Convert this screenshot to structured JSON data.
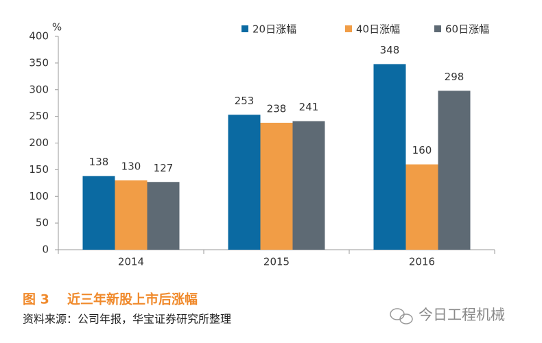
{
  "chart_data": {
    "type": "bar",
    "unit": "%",
    "categories": [
      "2014",
      "2015",
      "2016"
    ],
    "series": [
      {
        "name": "20日涨幅",
        "color": "#0b6aa2",
        "values": [
          138,
          253,
          348
        ]
      },
      {
        "name": "40日涨幅",
        "color": "#f19d46",
        "values": [
          130,
          238,
          160
        ]
      },
      {
        "name": "60日涨幅",
        "color": "#5e6a74",
        "values": [
          127,
          241,
          298
        ]
      }
    ],
    "ylim": [
      0,
      400
    ],
    "yticks": [
      0,
      50,
      100,
      150,
      200,
      250,
      300,
      350,
      400
    ],
    "figure_label": "图 3",
    "title": "近三年新股上市后涨幅",
    "source": "资料来源：公司年报，华宝证券研究所整理"
  },
  "watermark": "今日工程机械"
}
